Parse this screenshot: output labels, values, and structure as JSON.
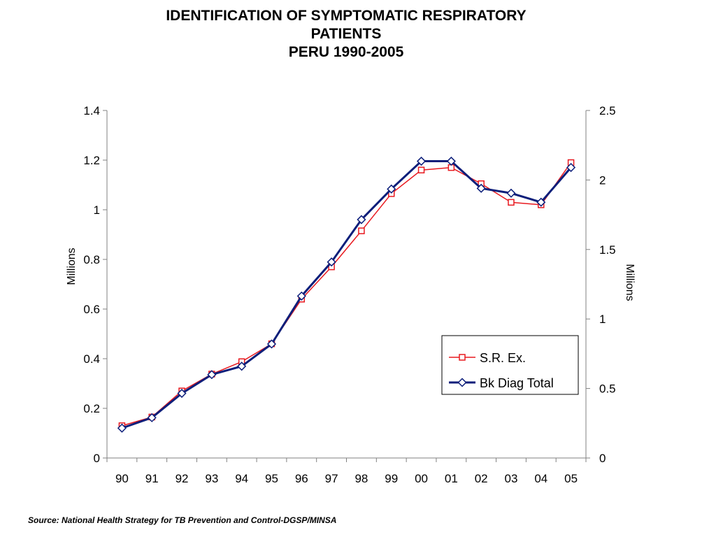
{
  "chart_data": {
    "type": "line",
    "title": [
      "IDENTIFICATION OF SYMPTOMATIC RESPIRATORY",
      "PATIENTS",
      "PERU 1990-2005"
    ],
    "categories": [
      "90",
      "91",
      "92",
      "93",
      "94",
      "95",
      "96",
      "97",
      "98",
      "99",
      "00",
      "01",
      "02",
      "03",
      "04",
      "05"
    ],
    "ylabel_left": "Millions",
    "ylabel_right": "Millions",
    "ylim_left": [
      0,
      1.4
    ],
    "ylim_right": [
      0,
      2.5
    ],
    "yticks_left": [
      "0",
      "0.2",
      "0.4",
      "0.6",
      "0.8",
      "1",
      "1.2",
      "1.4"
    ],
    "yticks_right": [
      "0",
      "0.5",
      "1",
      "1.5",
      "2",
      "2.5"
    ],
    "grid": false,
    "legend_position": "right",
    "series": [
      {
        "name": "S.R. Ex.",
        "axis": "left",
        "color": "#e8191f",
        "marker": "square",
        "values": [
          0.13,
          0.165,
          0.27,
          0.338,
          0.388,
          0.46,
          0.64,
          0.77,
          0.915,
          1.065,
          1.16,
          1.17,
          1.105,
          1.03,
          1.02,
          1.19
        ]
      },
      {
        "name": "Bk Diag Total",
        "axis": "right",
        "color": "#0c1e7a",
        "marker": "diamond",
        "values": [
          0.215,
          0.29,
          0.465,
          0.6,
          0.66,
          0.82,
          1.165,
          1.41,
          1.715,
          1.935,
          2.135,
          2.135,
          1.94,
          1.905,
          1.84,
          2.09
        ]
      }
    ]
  },
  "source": "Source: National Health Strategy for TB Prevention and Control-DGSP/MINSA"
}
